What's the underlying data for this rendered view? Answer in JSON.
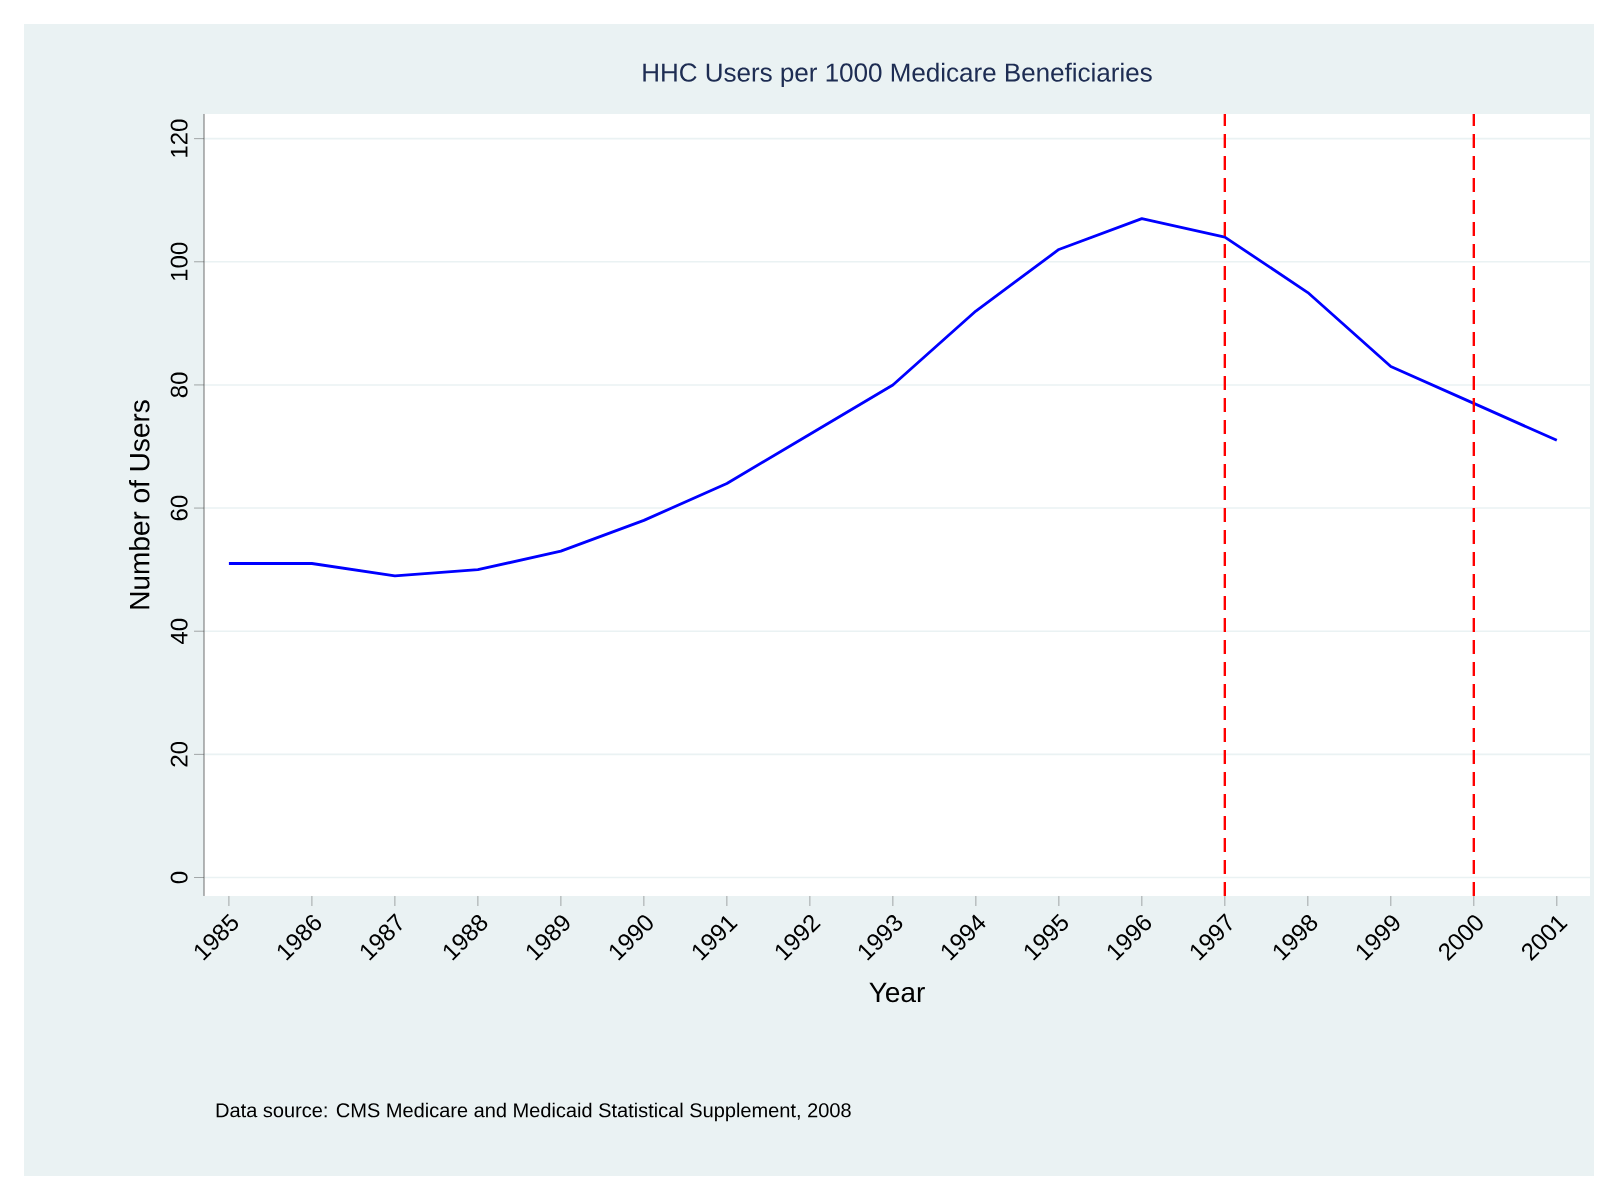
{
  "chart_data": {
    "type": "line",
    "title": "HHC Users per 1000 Medicare Beneficiaries",
    "xlabel": "Year",
    "ylabel": "Number of Users",
    "annotations": [
      "Data source: CMS Medicare and Medicaid Statistical Supplement, 2008"
    ],
    "x": [
      1985,
      1986,
      1987,
      1988,
      1989,
      1990,
      1991,
      1992,
      1993,
      1994,
      1995,
      1996,
      1997,
      1998,
      1999,
      2000,
      2001
    ],
    "series": [
      {
        "color": "#0000ff",
        "values": [
          51,
          51,
          49,
          50,
          53,
          58,
          64,
          72,
          80,
          92,
          102,
          107,
          104,
          95,
          83,
          77,
          71
        ]
      }
    ],
    "xlim": [
      1984.7,
      2001.4
    ],
    "xticks": [
      1985,
      1986,
      1987,
      1988,
      1989,
      1990,
      1991,
      1992,
      1993,
      1994,
      1995,
      1996,
      1997,
      1998,
      1999,
      2000,
      2001
    ],
    "ylim": [
      -3,
      124
    ],
    "yticks": [
      0,
      20,
      40,
      60,
      80,
      100,
      120
    ],
    "grid": "y",
    "ref_lines": [
      {
        "axis": "x",
        "value": 1997,
        "color": "#ff0000",
        "line_style": "dashed"
      },
      {
        "axis": "x",
        "value": 2000,
        "color": "#ff0000",
        "line_style": "dashed"
      }
    ]
  }
}
